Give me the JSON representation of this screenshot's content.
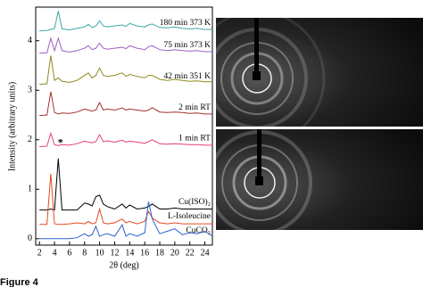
{
  "chart_data": {
    "type": "line",
    "xlabel": "2θ (deg)",
    "ylabel": "Intensity (arbitrary units)",
    "x": [
      2,
      3,
      3.5,
      4,
      4.5,
      5,
      6,
      7,
      8,
      8.5,
      9,
      9.5,
      10,
      10.5,
      11,
      12,
      13,
      13.5,
      14,
      15,
      16,
      16.5,
      17,
      18,
      19,
      20,
      21,
      22,
      23,
      24,
      25
    ],
    "xlim": [
      1.5,
      25
    ],
    "xticks": [
      2,
      4,
      6,
      8,
      10,
      12,
      14,
      16,
      18,
      20,
      22,
      24
    ],
    "ylim": [
      -0.13,
      4.68
    ],
    "yticks": [
      0,
      1,
      2,
      3,
      4
    ],
    "series": [
      {
        "name": "180 min 373 K",
        "color": "#3fa7a8",
        "values": [
          4.2,
          4.21,
          4.23,
          4.25,
          4.6,
          4.24,
          4.22,
          4.25,
          4.28,
          4.33,
          4.27,
          4.3,
          4.4,
          4.3,
          4.28,
          4.3,
          4.32,
          4.29,
          4.35,
          4.3,
          4.28,
          4.32,
          4.34,
          4.27,
          4.26,
          4.28,
          4.25,
          4.24,
          4.25,
          4.23,
          4.23
        ]
      },
      {
        "name": "75 min 373 K",
        "color": "#9b5fc0",
        "values": [
          3.75,
          3.76,
          4.05,
          3.8,
          4.05,
          3.8,
          3.77,
          3.8,
          3.85,
          3.9,
          3.82,
          3.85,
          3.95,
          3.85,
          3.83,
          3.85,
          3.87,
          3.84,
          3.9,
          3.85,
          3.82,
          3.88,
          3.9,
          3.82,
          3.8,
          3.82,
          3.8,
          3.79,
          3.8,
          3.78,
          3.78
        ]
      },
      {
        "name": "42 min 351 K",
        "color": "#8c8a1c",
        "values": [
          3.12,
          3.13,
          3.7,
          3.2,
          3.25,
          3.18,
          3.16,
          3.2,
          3.3,
          3.35,
          3.25,
          3.3,
          3.45,
          3.3,
          3.28,
          3.3,
          3.35,
          3.28,
          3.32,
          3.28,
          3.25,
          3.3,
          3.3,
          3.22,
          3.2,
          3.22,
          3.2,
          3.18,
          3.19,
          3.17,
          3.17
        ]
      },
      {
        "name": "2 min RT",
        "color": "#a3302a",
        "values": [
          2.49,
          2.5,
          2.97,
          2.55,
          2.52,
          2.54,
          2.53,
          2.56,
          2.62,
          2.6,
          2.58,
          2.6,
          2.75,
          2.6,
          2.62,
          2.6,
          2.64,
          2.6,
          2.62,
          2.6,
          2.58,
          2.6,
          2.65,
          2.56,
          2.55,
          2.56,
          2.55,
          2.53,
          2.54,
          2.52,
          2.52
        ]
      },
      {
        "name": "1 min RT",
        "color": "#e2407c",
        "values": [
          1.86,
          1.87,
          2.13,
          1.9,
          1.88,
          1.9,
          1.89,
          1.92,
          1.97,
          1.95,
          1.94,
          1.96,
          2.1,
          1.96,
          1.98,
          1.95,
          1.99,
          1.95,
          1.97,
          1.95,
          1.93,
          1.96,
          2.0,
          1.92,
          1.91,
          1.92,
          1.91,
          1.9,
          1.9,
          1.89,
          1.89
        ]
      },
      {
        "name": "Cu(ISO)₂",
        "color": "#000000",
        "values": [
          0.58,
          0.58,
          0.6,
          0.58,
          1.62,
          0.58,
          0.58,
          0.58,
          0.72,
          0.7,
          0.66,
          0.85,
          0.88,
          0.7,
          0.65,
          0.6,
          0.7,
          0.62,
          0.68,
          0.6,
          0.62,
          0.65,
          0.7,
          0.6,
          0.6,
          0.62,
          0.6,
          0.6,
          0.6,
          0.6,
          0.6
        ]
      },
      {
        "name": "L-Isoleucine",
        "color": "#e24a22",
        "values": [
          0.29,
          0.29,
          1.31,
          0.3,
          0.29,
          0.29,
          0.3,
          0.32,
          0.3,
          0.35,
          0.3,
          0.32,
          0.6,
          0.32,
          0.3,
          0.32,
          0.4,
          0.32,
          0.35,
          0.3,
          0.35,
          0.55,
          0.42,
          0.32,
          0.3,
          0.32,
          0.3,
          0.3,
          0.3,
          0.3,
          0.3
        ]
      },
      {
        "name": "CuCO₃",
        "color": "#2a62d0",
        "values": [
          0,
          0,
          0,
          0,
          0,
          0,
          0,
          0.02,
          0.1,
          0.05,
          0.08,
          0.25,
          0.05,
          0.08,
          0.1,
          0.05,
          0.28,
          0.05,
          0.1,
          0.05,
          0.12,
          0.75,
          0.4,
          0.1,
          0.15,
          0.2,
          0.08,
          0.12,
          0.1,
          0.15,
          0.05
        ]
      }
    ],
    "annotations": [
      {
        "text": "*",
        "x": 4.8,
        "y": 1.93
      }
    ],
    "caption": "Figure 4"
  }
}
